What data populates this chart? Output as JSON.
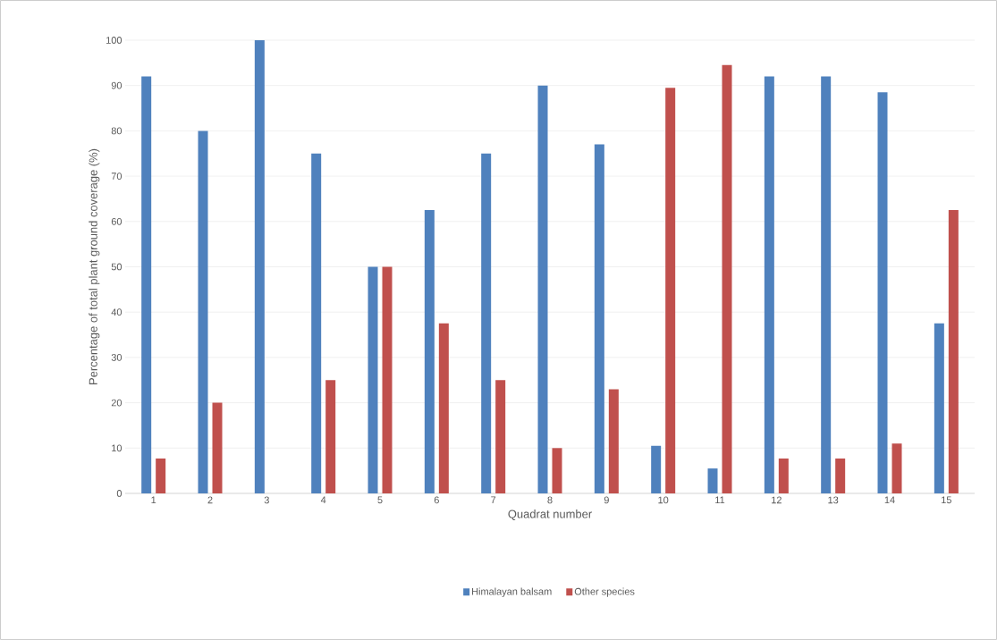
{
  "chart_data": {
    "type": "bar",
    "xlabel": "Quadrat number",
    "ylabel": "Percentage of total plant ground coverage (%)",
    "categories": [
      "1",
      "2",
      "3",
      "4",
      "5",
      "6",
      "7",
      "8",
      "9",
      "10",
      "11",
      "12",
      "13",
      "14",
      "15"
    ],
    "series": [
      {
        "name": "Himalayan balsam",
        "color": "#4f81bd",
        "values": [
          92,
          80,
          100,
          75,
          50,
          62.5,
          75,
          90,
          77,
          10.5,
          5.5,
          92,
          92,
          88.5,
          37.5
        ]
      },
      {
        "name": "Other species",
        "color": "#c0504d",
        "values": [
          7.7,
          20,
          0,
          25,
          50,
          37.5,
          25,
          10,
          23,
          89.5,
          94.5,
          7.7,
          7.7,
          11,
          62.5
        ]
      }
    ],
    "ylim": [
      0,
      100
    ],
    "yticks": [
      0,
      10,
      20,
      30,
      40,
      50,
      60,
      70,
      80,
      90,
      100
    ],
    "grid": "y",
    "legend": "bottom"
  }
}
